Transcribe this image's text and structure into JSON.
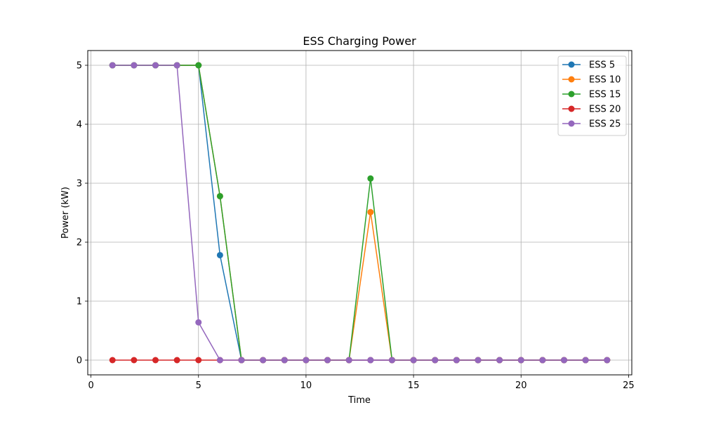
{
  "chart_data": {
    "type": "line",
    "title": "ESS Charging Power",
    "xlabel": "Time",
    "ylabel": "Power (kW)",
    "xlim": [
      -0.15,
      25.15
    ],
    "ylim": [
      -0.25,
      5.25
    ],
    "xticks": [
      0,
      5,
      10,
      15,
      20,
      25
    ],
    "yticks": [
      0,
      1,
      2,
      3,
      4,
      5
    ],
    "grid": true,
    "legend_position": "top-right",
    "x": [
      1,
      2,
      3,
      4,
      5,
      6,
      7,
      8,
      9,
      10,
      11,
      12,
      13,
      14,
      15,
      16,
      17,
      18,
      19,
      20,
      21,
      22,
      23,
      24
    ],
    "series": [
      {
        "name": "ESS 5",
        "color": "#1f77b4",
        "values": [
          5,
          5,
          5,
          5,
          5,
          1.78,
          0,
          0,
          0,
          0,
          0,
          0,
          0,
          0,
          0,
          0,
          0,
          0,
          0,
          0,
          0,
          0,
          0,
          0
        ]
      },
      {
        "name": "ESS 10",
        "color": "#ff7f0e",
        "values": [
          5,
          5,
          5,
          5,
          5,
          2.78,
          0,
          0,
          0,
          0,
          0,
          0,
          2.51,
          0,
          0,
          0,
          0,
          0,
          0,
          0,
          0,
          0,
          0,
          0
        ]
      },
      {
        "name": "ESS 15",
        "color": "#2ca02c",
        "values": [
          5,
          5,
          5,
          5,
          5,
          2.78,
          0,
          0,
          0,
          0,
          0,
          0,
          3.08,
          0,
          0,
          0,
          0,
          0,
          0,
          0,
          0,
          0,
          0,
          0
        ]
      },
      {
        "name": "ESS 20",
        "color": "#d62728",
        "values": [
          0,
          0,
          0,
          0,
          0,
          0,
          0,
          0,
          0,
          0,
          0,
          0,
          0,
          0,
          0,
          0,
          0,
          0,
          0,
          0,
          0,
          0,
          0,
          0
        ]
      },
      {
        "name": "ESS 25",
        "color": "#9467bd",
        "values": [
          5,
          5,
          5,
          5,
          0.64,
          0,
          0,
          0,
          0,
          0,
          0,
          0,
          0,
          0,
          0,
          0,
          0,
          0,
          0,
          0,
          0,
          0,
          0,
          0
        ]
      }
    ]
  }
}
